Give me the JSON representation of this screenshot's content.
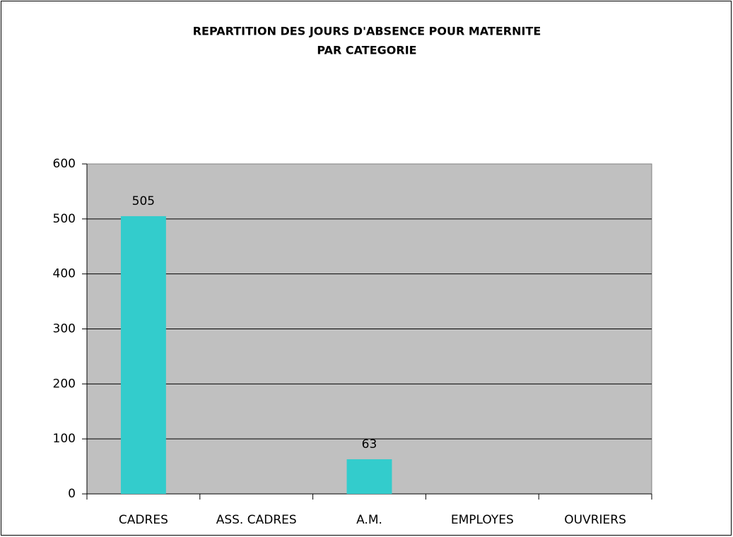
{
  "chart_data": {
    "type": "bar",
    "title": [
      "REPARTITION DES JOURS D'ABSENCE POUR MATERNITE",
      "PAR CATEGORIE"
    ],
    "categories": [
      "CADRES",
      "ASS. CADRES",
      "A.M.",
      "EMPLOYES",
      "OUVRIERS"
    ],
    "values": [
      505,
      null,
      63,
      null,
      null
    ],
    "color": "#33cccc",
    "ylim": [
      0,
      600
    ],
    "yticks": [
      0,
      100,
      200,
      300,
      400,
      500,
      600
    ],
    "grid": true,
    "plot_background": "#c0c0c0"
  }
}
